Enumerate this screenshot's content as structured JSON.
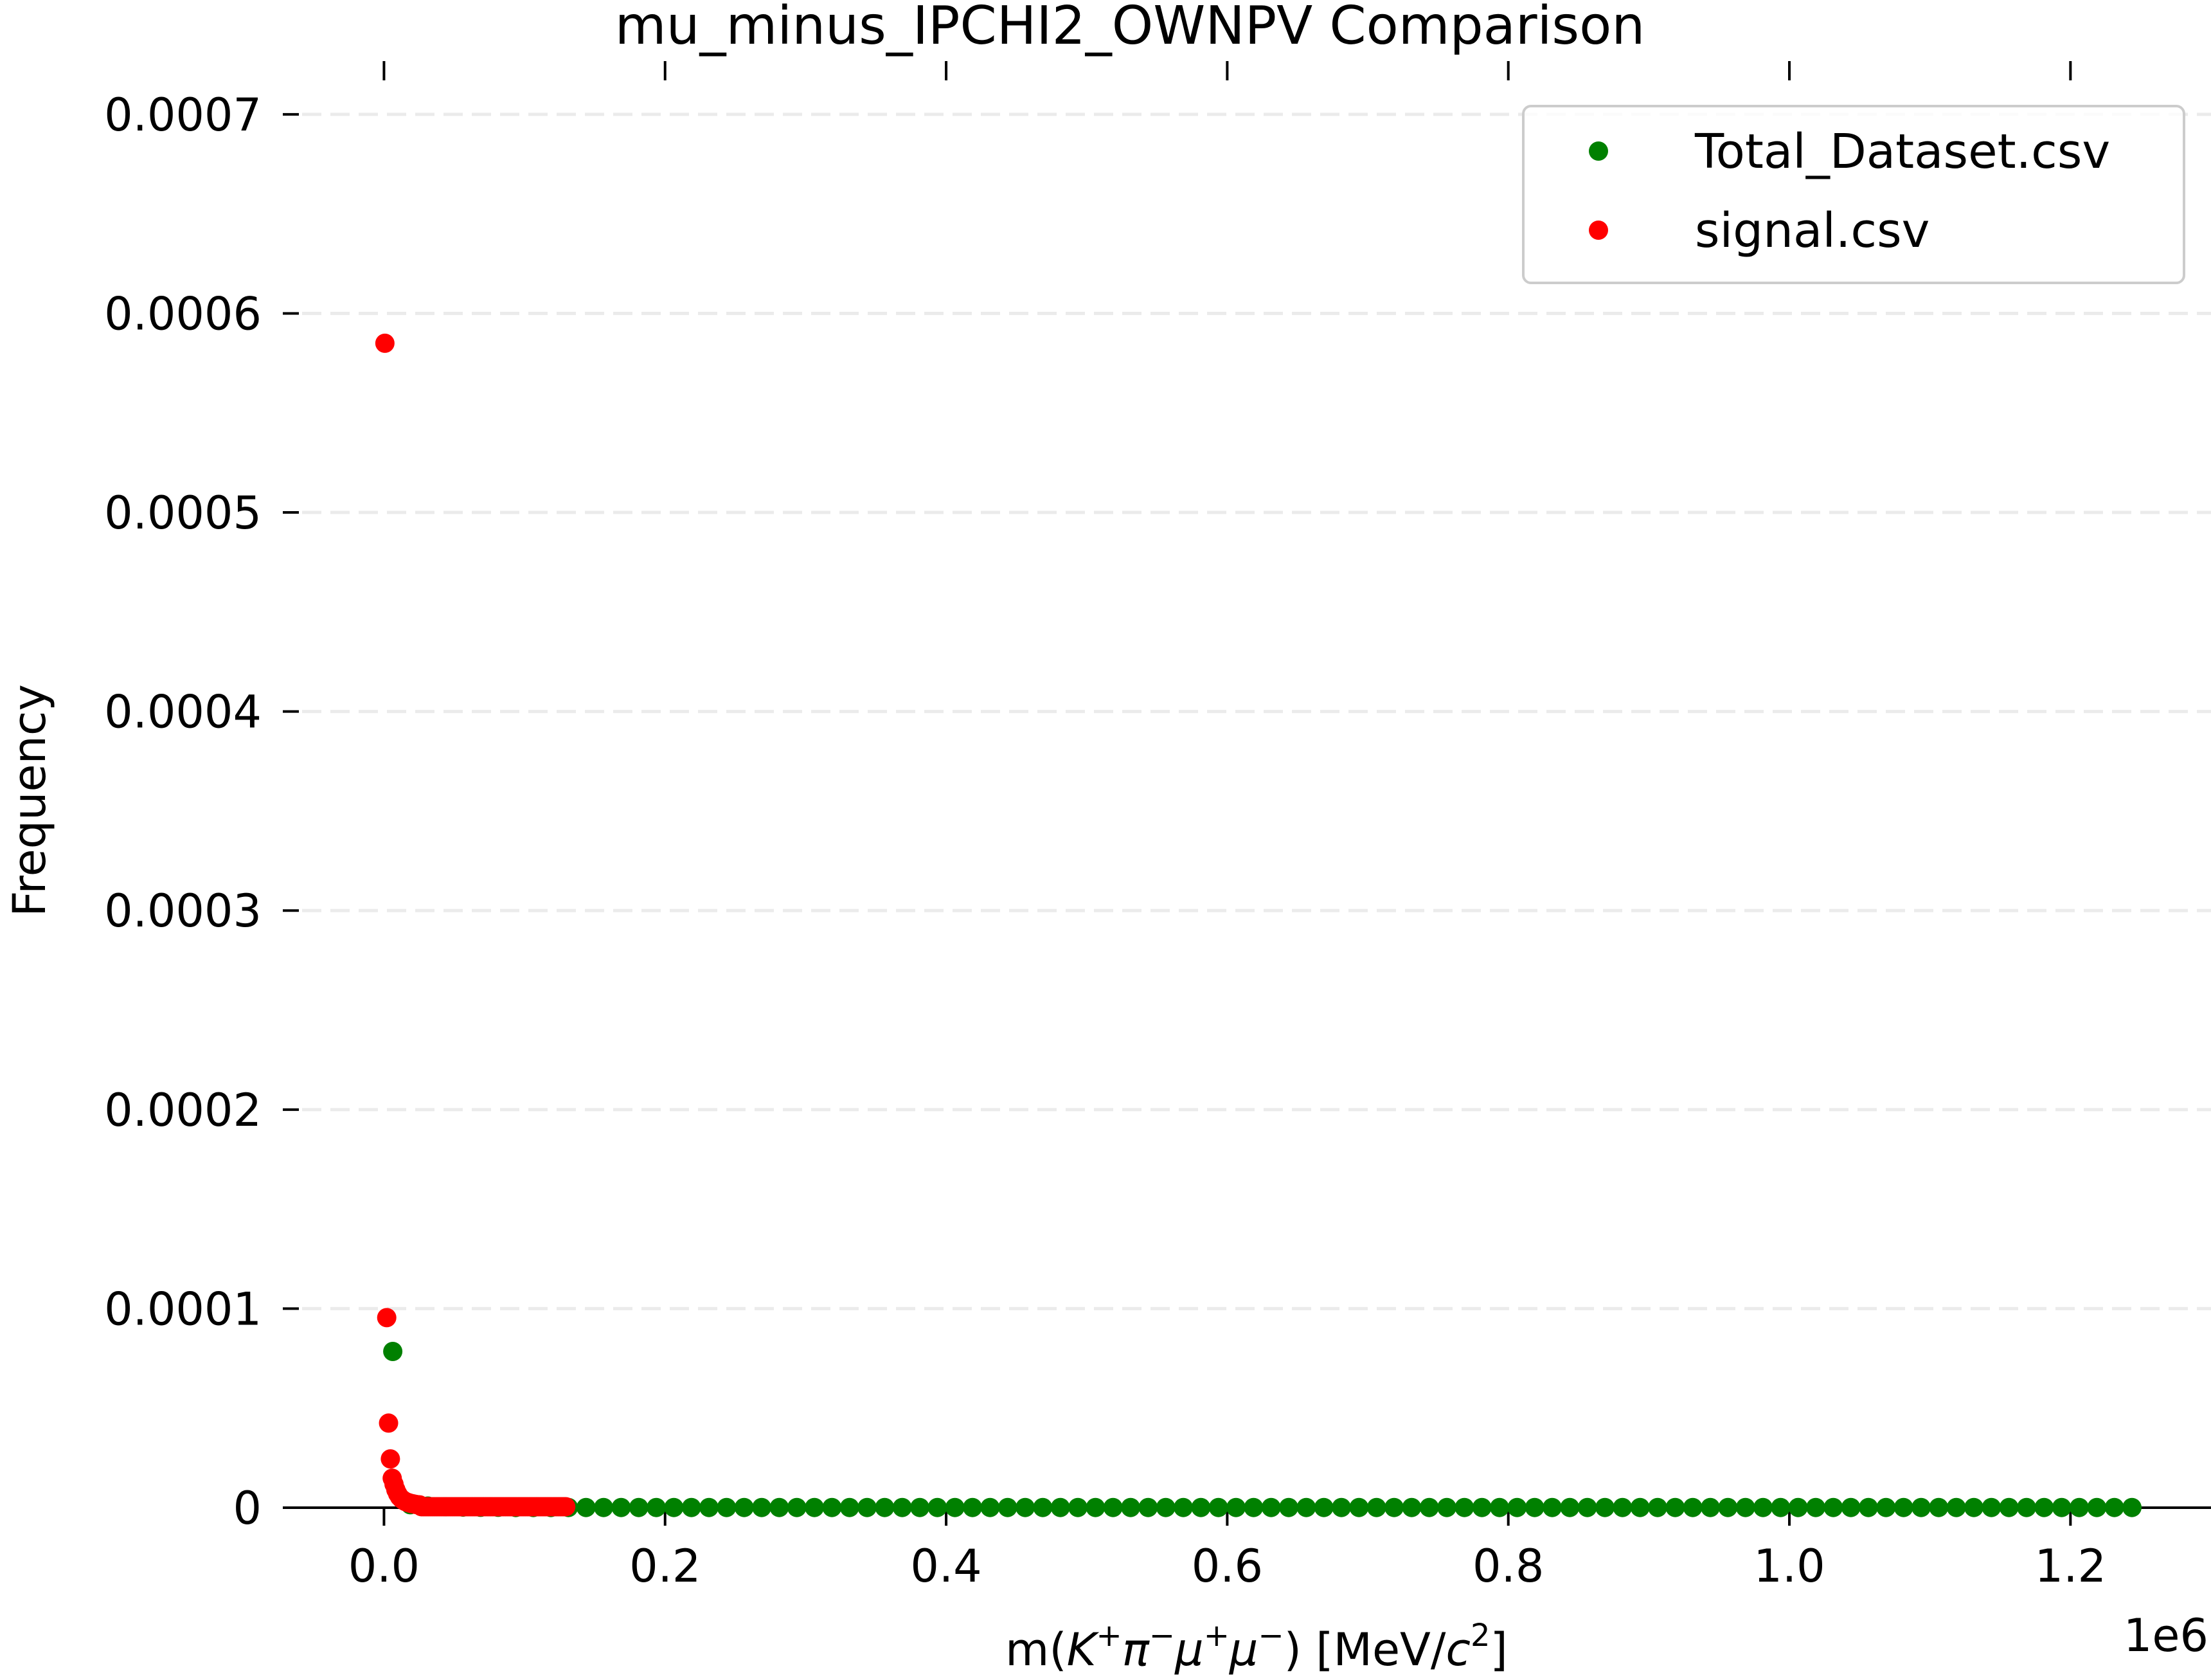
{
  "chart_data": {
    "type": "scatter",
    "title": "mu_minus_IPCHI2_OWNPV Comparison",
    "xlabel_parts": {
      "prefix": "m(",
      "K": "K",
      "plus1": "+",
      "pi": "π",
      "minus1": "−",
      "mu1": "μ",
      "plus2": "+",
      "mu2": "μ",
      "minus2": "−",
      "mid": ") [MeV/",
      "c": "c",
      "sq": "2",
      "suffix": "]"
    },
    "ylabel": "Frequency",
    "x_offset_text": "1e6",
    "xlim": [
      -72000,
      1300000
    ],
    "ylim": [
      0,
      0.00073
    ],
    "x_ticks": [
      {
        "value": 0,
        "label": "0.0"
      },
      {
        "value": 200000,
        "label": "0.2"
      },
      {
        "value": 400000,
        "label": "0.4"
      },
      {
        "value": 600000,
        "label": "0.6"
      },
      {
        "value": 800000,
        "label": "0.8"
      },
      {
        "value": 1000000,
        "label": "1.0"
      },
      {
        "value": 1200000,
        "label": "1.2"
      }
    ],
    "y_ticks": [
      {
        "value": 0,
        "label": "0"
      },
      {
        "value": 0.0001,
        "label": "0.0001"
      },
      {
        "value": 0.0002,
        "label": "0.0002"
      },
      {
        "value": 0.0003,
        "label": "0.0003"
      },
      {
        "value": 0.0004,
        "label": "0.0004"
      },
      {
        "value": 0.0005,
        "label": "0.0005"
      },
      {
        "value": 0.0006,
        "label": "0.0006"
      },
      {
        "value": 0.0007,
        "label": "0.0007"
      }
    ],
    "grid": "horizontal dashed",
    "legend_position": "top-right",
    "series": [
      {
        "name": "Total_Dataset.csv",
        "color": "#008000",
        "x_start": 6250,
        "x_step": 12500,
        "count": 100,
        "y_head": [
          7.85e-05,
          1.5e-06,
          8e-07,
          5e-07,
          3e-07,
          2e-07,
          2e-07,
          1e-07
        ],
        "y_tail": 1e-07
      },
      {
        "name": "signal.csv",
        "color": "#ff0000",
        "x_start": 650,
        "x_step": 1300,
        "count": 100,
        "y_head": [
          0.000585,
          9.55e-05,
          4.25e-05,
          2.45e-05,
          1.48e-05,
          1.18e-05,
          9e-06,
          7e-06,
          5.5e-06,
          4.5e-06,
          3.8e-06,
          3.2e-06,
          2.8e-06,
          2.5e-06,
          2.2e-06,
          2e-06,
          1.8e-06,
          1.6e-06,
          1.5e-06,
          1.4e-06
        ],
        "y_tail": 5e-07
      }
    ]
  }
}
